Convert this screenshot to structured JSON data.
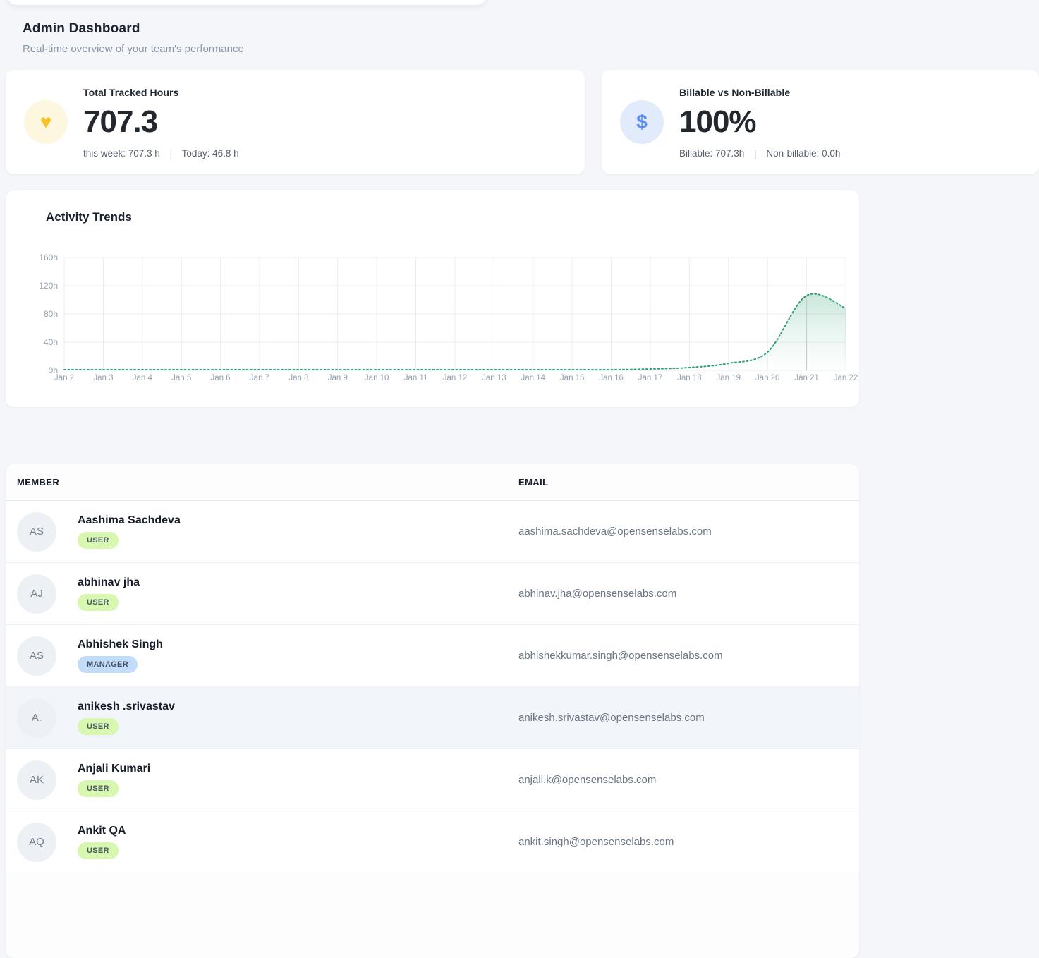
{
  "page": {
    "title": "Admin Dashboard",
    "subtitle": "Real-time overview of your team's performance"
  },
  "stats": [
    {
      "icon": "heart-icon",
      "glyph": "♥",
      "icon_bg": "#fdf7e0",
      "icon_color": "#f7c12b",
      "title": "Total Tracked Hours",
      "value": "707.3",
      "detail_left": "this week: 707.3 h",
      "detail_sep": "|",
      "detail_right": "Today: 46.8 h"
    },
    {
      "icon": "dollar-icon",
      "glyph": "$",
      "icon_bg": "#e2ebfc",
      "icon_color": "#5c8df2",
      "title": "Billable vs Non-Billable",
      "value": "100%",
      "detail_left": "Billable: 707.3h",
      "detail_sep": "|",
      "detail_right": "Non-billable: 0.0h"
    }
  ],
  "chart_data": {
    "type": "area",
    "title": "Activity Trends",
    "x": [
      "Jan 2",
      "Jan 3",
      "Jan 4",
      "Jan 5",
      "Jan 6",
      "Jan 7",
      "Jan 8",
      "Jan 9",
      "Jan 10",
      "Jan 11",
      "Jan 12",
      "Jan 13",
      "Jan 14",
      "Jan 15",
      "Jan 16",
      "Jan 17",
      "Jan 18",
      "Jan 19",
      "Jan 20",
      "Jan 21",
      "Jan 22"
    ],
    "values": [
      1,
      1,
      1,
      1,
      1,
      1,
      1,
      1,
      1,
      1,
      1,
      1,
      1,
      1,
      1,
      2,
      4,
      10,
      26,
      106,
      88
    ],
    "unit": "h",
    "ylim": [
      0,
      160
    ],
    "yticks": [
      0,
      40,
      80,
      120,
      160
    ],
    "ytick_labels": [
      "0h",
      "40h",
      "80h",
      "120h",
      "160h"
    ],
    "grid": true,
    "line_style": "dotted",
    "line_color": "#2fa273",
    "grid_color": "#e9edf3",
    "axis_label_color": "#949fae",
    "highlight_x": "Jan 21",
    "legend": null
  },
  "table": {
    "headers": [
      "MEMBER",
      "EMAIL"
    ],
    "roles": {
      "USER": {
        "bg": "#d8f7b0",
        "fg": "#4a5663"
      },
      "MANAGER": {
        "bg": "#c3dcf9",
        "fg": "#3e4d63"
      }
    },
    "rows": [
      {
        "initials": "AS",
        "name": "Aashima Sachdeva",
        "role": "USER",
        "email": "aashima.sachdeva@opensenselabs.com",
        "highlighted": false
      },
      {
        "initials": "AJ",
        "name": "abhinav jha",
        "role": "USER",
        "email": "abhinav.jha@opensenselabs.com",
        "highlighted": false
      },
      {
        "initials": "AS",
        "name": "Abhishek Singh",
        "role": "MANAGER",
        "email": "abhishekkumar.singh@opensenselabs.com",
        "highlighted": false
      },
      {
        "initials": "A.",
        "name": "anikesh .srivastav",
        "role": "USER",
        "email": "anikesh.srivastav@opensenselabs.com",
        "highlighted": true
      },
      {
        "initials": "AK",
        "name": "Anjali Kumari",
        "role": "USER",
        "email": "anjali.k@opensenselabs.com",
        "highlighted": false
      },
      {
        "initials": "AQ",
        "name": "Ankit QA",
        "role": "USER",
        "email": "ankit.singh@opensenselabs.com",
        "highlighted": false
      }
    ]
  }
}
